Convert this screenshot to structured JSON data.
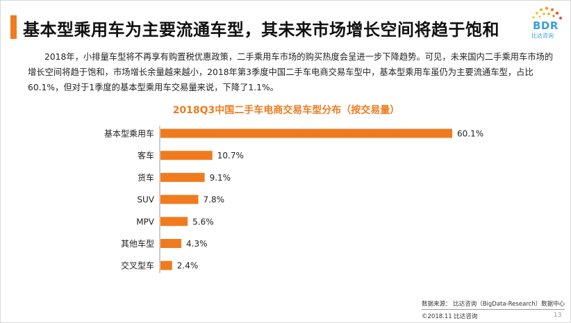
{
  "header": {
    "title": "基本型乘用车为主要流通车型，其未来市场增长空间将趋于饱和"
  },
  "logo": {
    "text": "BDR",
    "sub": "比达咨询"
  },
  "paragraph": "2018年，小排量车型将不再享有购置税优惠政策，二手乘用车市场的购买热度会呈进一步下降趋势。可见，未来国内二手乘用车市场的增长空间将趋于饱和，市场增长余量越来越小，2018年第3季度中国二手车电商交易车型中，基本型乘用车虽仍为主要流通车型，占比60.1%，但对于1季度的基本型乘用车交易量来说，下降了1.1%。",
  "chart_data": {
    "type": "bar",
    "orientation": "horizontal",
    "title": "2018Q3中国二手车电商交易车型分布（按交易量）",
    "categories": [
      "基本型乘用车",
      "客车",
      "货车",
      "SUV",
      "MPV",
      "其他车型",
      "交叉型车"
    ],
    "values": [
      60.1,
      10.7,
      9.1,
      7.8,
      5.6,
      4.3,
      2.4
    ],
    "value_labels": [
      "60.1%",
      "10.7%",
      "9.1%",
      "7.8%",
      "5.6%",
      "4.3%",
      "2.4%"
    ],
    "unit": "%",
    "xlim": [
      0,
      60.1
    ],
    "bar_color": "#f07b1f",
    "grid": false,
    "legend": "none"
  },
  "footer": {
    "source": "数据来源： 比达咨询（BigData-Research）数据中心",
    "copyright": "©2018.11  比达咨询",
    "page": "13"
  },
  "colors": {
    "accent": "#f07b1f",
    "logo": "#3aa0d8"
  }
}
